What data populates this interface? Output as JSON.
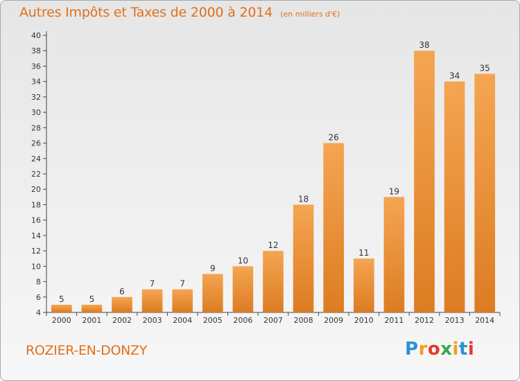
{
  "chart_data": {
    "type": "bar",
    "title": "Autres Impôts et Taxes de 2000 à 2014",
    "unit": "(en milliers d'€)",
    "categories": [
      "2000",
      "2001",
      "2002",
      "2003",
      "2004",
      "2005",
      "2006",
      "2007",
      "2008",
      "2009",
      "2010",
      "2011",
      "2012",
      "2013",
      "2014"
    ],
    "values": [
      5,
      5,
      6,
      7,
      7,
      9,
      10,
      12,
      18,
      26,
      11,
      19,
      38,
      34,
      35
    ],
    "ylim": [
      4,
      40
    ],
    "yticks": [
      4,
      6,
      8,
      10,
      12,
      14,
      16,
      18,
      20,
      22,
      24,
      26,
      28,
      30,
      32,
      34,
      36,
      38,
      40
    ],
    "grid": false,
    "bar_color_top": "#f5a552",
    "bar_color_bottom": "#dc7c22"
  },
  "commune": "ROZIER-EN-DONZY",
  "logo": {
    "letters": [
      "P",
      "r",
      "o",
      "x",
      "i",
      "t",
      "i"
    ],
    "colors": [
      "#2c8fd6",
      "#f0a020",
      "#e23b2a",
      "#3aa84a",
      "#f0a020",
      "#2c8fd6",
      "#e23b2a"
    ]
  }
}
